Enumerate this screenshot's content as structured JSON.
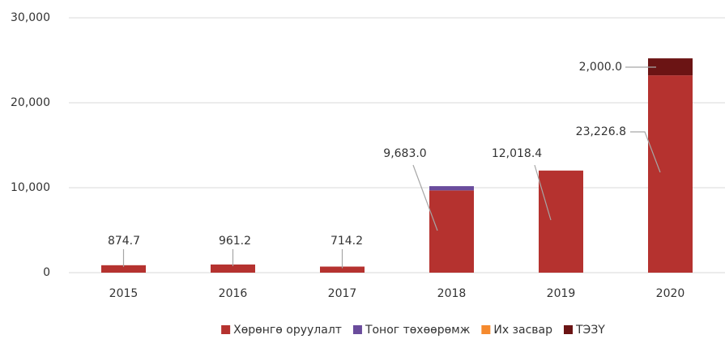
{
  "chart_data": {
    "type": "bar",
    "stacked": true,
    "categories": [
      "2015",
      "2016",
      "2017",
      "2018",
      "2019",
      "2020"
    ],
    "series": [
      {
        "name": "Хөрөнгө оруулалт",
        "color": "#b5322f",
        "values": [
          874.7,
          961.2,
          714.2,
          9683.0,
          12018.4,
          23226.8
        ],
        "value_labels": [
          "874.7",
          "961.2",
          "714.2",
          "9,683.0",
          "12,018.4",
          "23,226.8"
        ]
      },
      {
        "name": "Тоног төхөөрөмж",
        "color": "#6a4c9c",
        "values": [
          null,
          null,
          null,
          500,
          null,
          null
        ]
      },
      {
        "name": "Их засвар",
        "color": "#f58a2e",
        "values": [
          null,
          null,
          null,
          null,
          null,
          null
        ]
      },
      {
        "name": "ТЭЗҮ",
        "color": "#6b1414",
        "values": [
          null,
          null,
          null,
          null,
          null,
          2000.0
        ],
        "value_labels": [
          null,
          null,
          null,
          null,
          null,
          "2,000.0"
        ]
      }
    ],
    "ylim": [
      0,
      30000
    ],
    "yticks": [
      0,
      {
        "value": 10000,
        "label": "10,000"
      },
      {
        "value": 20000,
        "label": "20,000"
      },
      {
        "value": 30000,
        "label": "30,000"
      }
    ],
    "grid": true,
    "legend": "bottom"
  }
}
